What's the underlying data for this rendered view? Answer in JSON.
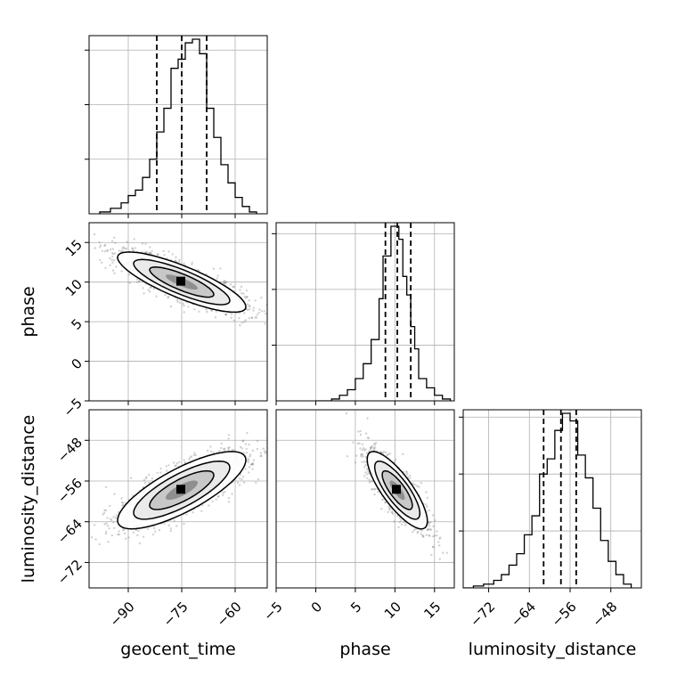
{
  "chart_data": {
    "type": "corner",
    "parameters": [
      "geocent_time",
      "phase",
      "luminosity_distance"
    ],
    "axis_labels": {
      "geocent_time": "geocent_time",
      "phase": "phase",
      "luminosity_distance": "luminosity_distance"
    },
    "ranges": {
      "geocent_time": [
        -101,
        -51
      ],
      "phase": [
        -5,
        17.5
      ],
      "luminosity_distance": [
        -77,
        -42
      ]
    },
    "ticks": {
      "geocent_time": [
        -90,
        -75,
        -60
      ],
      "phase": [
        -5,
        0,
        5,
        10,
        15
      ],
      "luminosity_distance": [
        -72,
        -64,
        -56,
        -48
      ]
    },
    "tick_labels": {
      "geocent_time": [
        "−90",
        "−75",
        "−60"
      ],
      "phase": [
        "−5",
        "0",
        "5",
        "10",
        "15"
      ],
      "luminosity_distance": [
        "−72",
        "−64",
        "−56",
        "−48"
      ]
    },
    "quantiles": {
      "geocent_time": [
        -82,
        -75,
        -68
      ],
      "phase": [
        8.8,
        10.3,
        12.0
      ],
      "luminosity_distance": [
        -61.2,
        -57.8,
        -54.8
      ]
    },
    "histograms": {
      "geocent_time": {
        "edges": [
          -98,
          -95,
          -92,
          -90,
          -88,
          -86,
          -84,
          -82,
          -80,
          -78,
          -76,
          -74,
          -72,
          -70,
          -68,
          -66,
          -64,
          -62,
          -60,
          -58,
          -56,
          -54
        ],
        "heights": [
          0.01,
          0.03,
          0.06,
          0.1,
          0.13,
          0.2,
          0.3,
          0.45,
          0.58,
          0.8,
          0.85,
          0.94,
          0.96,
          0.88,
          0.58,
          0.42,
          0.27,
          0.17,
          0.09,
          0.04,
          0.01
        ]
      },
      "phase": {
        "edges": [
          0,
          2,
          3,
          4,
          5,
          6,
          7,
          8,
          8.5,
          9,
          9.5,
          10,
          10.5,
          11,
          11.5,
          12,
          12.5,
          13,
          14,
          15,
          16,
          17
        ],
        "heights": [
          0.0,
          0.01,
          0.03,
          0.06,
          0.12,
          0.2,
          0.33,
          0.55,
          0.78,
          0.78,
          0.94,
          0.94,
          0.87,
          0.67,
          0.57,
          0.4,
          0.28,
          0.12,
          0.07,
          0.03,
          0.01
        ]
      },
      "luminosity_distance": {
        "edges": [
          -77,
          -75,
          -73,
          -71,
          -69.5,
          -68,
          -66.5,
          -65,
          -63.5,
          -62,
          -60.5,
          -59,
          -57.5,
          -56,
          -54.5,
          -53,
          -51.5,
          -50,
          -48.5,
          -47,
          -45.5,
          -44
        ],
        "heights": [
          0.0,
          0.01,
          0.02,
          0.04,
          0.07,
          0.12,
          0.18,
          0.28,
          0.38,
          0.6,
          0.68,
          0.83,
          0.92,
          0.88,
          0.7,
          0.58,
          0.42,
          0.25,
          0.14,
          0.07,
          0.02
        ]
      }
    },
    "pairs": [
      {
        "x": "geocent_time",
        "y": "phase",
        "mean": [
          -75,
          10
        ],
        "std": [
          9,
          1.9
        ],
        "correlation": -0.82,
        "contour_levels_sigma": [
          0.5,
          1.0,
          1.5,
          2.0
        ]
      },
      {
        "x": "geocent_time",
        "y": "luminosity_distance",
        "mean": [
          -75,
          -57.8
        ],
        "std": [
          9,
          3.8
        ],
        "correlation": 0.78,
        "contour_levels_sigma": [
          0.5,
          1.0,
          1.5,
          2.0
        ]
      },
      {
        "x": "phase",
        "y": "luminosity_distance",
        "mean": [
          10.3,
          -57.8
        ],
        "std": [
          1.9,
          3.8
        ],
        "correlation": -0.8,
        "contour_levels_sigma": [
          0.5,
          1.0,
          1.5,
          2.0
        ]
      }
    ],
    "grid": true
  }
}
